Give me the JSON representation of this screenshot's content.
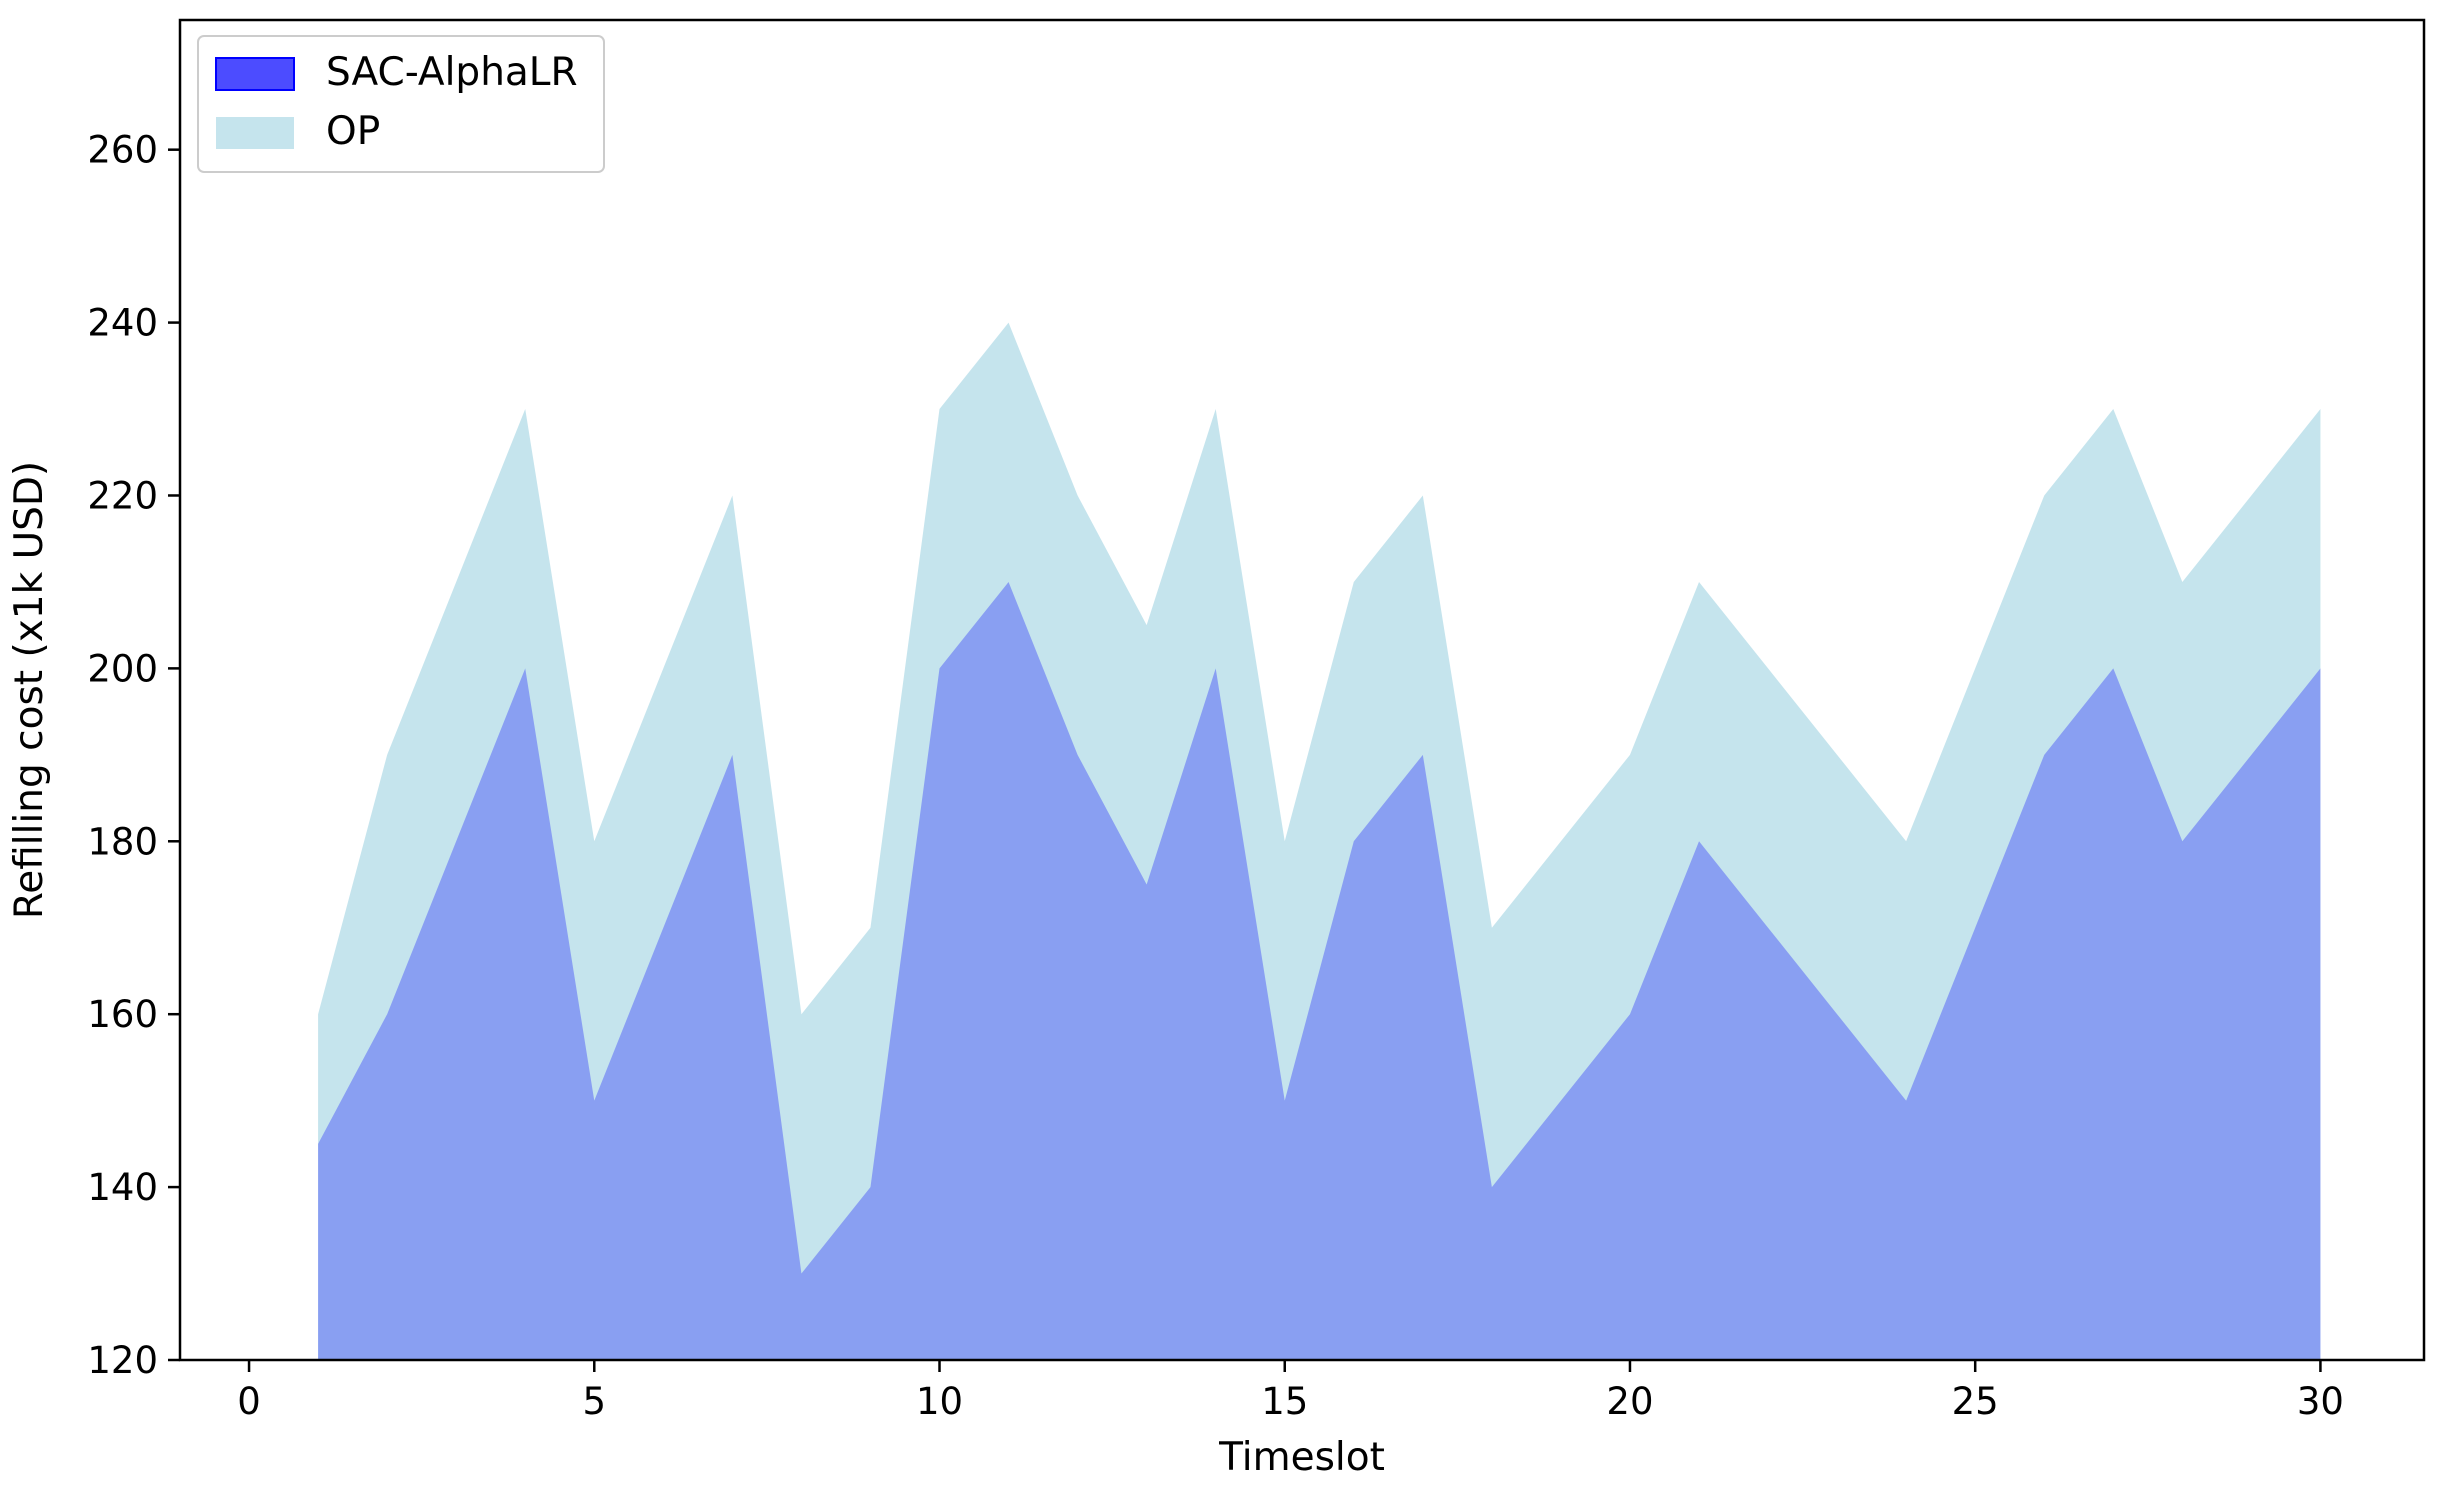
{
  "chart_data": {
    "type": "area",
    "title": "",
    "xlabel": "Timeslot",
    "ylabel": "Refilling cost (x1k USD)",
    "xlim": [
      -1,
      31.5
    ],
    "ylim": [
      120,
      275
    ],
    "xticks": [
      0,
      5,
      10,
      15,
      20,
      25,
      30
    ],
    "yticks": [
      120,
      140,
      160,
      180,
      200,
      220,
      240,
      260
    ],
    "grid": false,
    "legend_position": "top-left",
    "x": [
      1,
      2,
      3,
      4,
      5,
      6,
      7,
      8,
      9,
      10,
      11,
      12,
      13,
      14,
      15,
      16,
      17,
      18,
      19,
      20,
      21,
      22,
      23,
      24,
      25,
      26,
      27,
      28,
      29,
      30
    ],
    "series": [
      {
        "name": "OP",
        "color": "#add8e6",
        "alpha": 0.7,
        "values": [
          160,
          190,
          210,
          230,
          180,
          200,
          220,
          160,
          170,
          230,
          240,
          220,
          205,
          230,
          180,
          210,
          220,
          170,
          180,
          190,
          210,
          200,
          190,
          180,
          200,
          220,
          230,
          210,
          220,
          230
        ]
      },
      {
        "name": "SAC-AlphaLR",
        "color": "#0000ff",
        "alpha": 0.3,
        "values": [
          145,
          160,
          180,
          200,
          150,
          170,
          190,
          130,
          140,
          200,
          210,
          190,
          175,
          200,
          150,
          180,
          190,
          140,
          150,
          160,
          180,
          170,
          160,
          150,
          170,
          190,
          200,
          180,
          190,
          200
        ]
      }
    ]
  }
}
